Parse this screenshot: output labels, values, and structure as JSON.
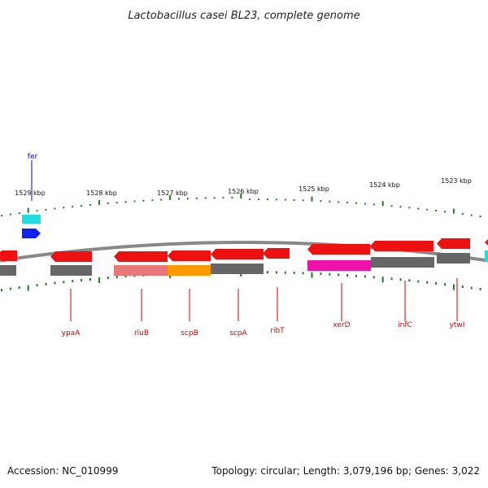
{
  "title": "Lactobacillus casei BL23, complete genome",
  "footer": {
    "accession": "Accession: NC_010999",
    "stats": "Topology: circular; Length: 3,079,196 bp; Genes: 3,022"
  },
  "colors": {
    "cds": "#ee1111",
    "gray_track": "#666666",
    "backbone": "#888888",
    "ticks": "#227722",
    "label": "#cc0000",
    "fer_label": "#0000cc",
    "fer_gene": "#1122ee",
    "cyan_feature": "#22dddd",
    "pink": "#e87878",
    "orange": "#ff9900",
    "magenta": "#ee11aa"
  },
  "fer": {
    "label": "fer"
  },
  "scale": [
    "1529 kbp",
    "1528 kbp",
    "1527 kbp",
    "1526 kbp",
    "1525 kbp",
    "1524 kbp",
    "1523 kbp"
  ],
  "genes": [
    "ypaA",
    "rluB",
    "scpB",
    "scpA",
    "ribT",
    "xerD",
    "infC",
    "ytwI"
  ]
}
